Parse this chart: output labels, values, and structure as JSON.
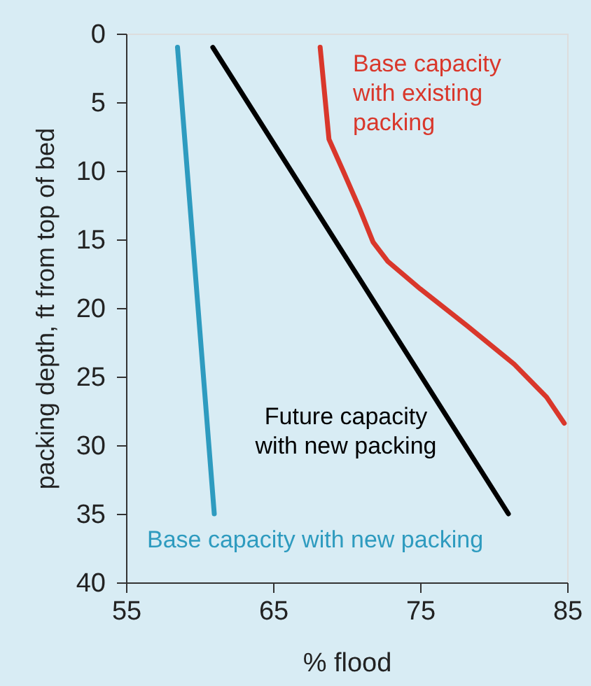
{
  "chart_data": {
    "type": "line",
    "xlabel": "% flood",
    "ylabel": "packing depth, ft from top of bed",
    "xlim": [
      55,
      85
    ],
    "xticks": [
      55,
      65,
      75,
      85
    ],
    "ylim": [
      40,
      0
    ],
    "yticks": [
      0,
      5,
      10,
      15,
      20,
      25,
      30,
      35,
      40
    ],
    "grid": false,
    "legend": false,
    "line_style": "solid",
    "marker": "none",
    "series": [
      {
        "name": "Base capacity with new packing",
        "color": "#2e9bbf",
        "x": [
          58.5,
          61.0
        ],
        "values": [
          1,
          35
        ]
      },
      {
        "name": "Future capacity\nwith new packing",
        "color": "#000000",
        "x": [
          60.9,
          81.0
        ],
        "values": [
          1,
          35
        ]
      },
      {
        "name": "Base capacity\nwith existing\npacking",
        "color": "#d9372b",
        "x": [
          68.2,
          68.8,
          69.8,
          70.9,
          71.8,
          72.8,
          75.0,
          78.2,
          81.4,
          83.6,
          84.8
        ],
        "values": [
          1,
          7.7,
          10.1,
          12.8,
          15.2,
          16.6,
          18.6,
          21.3,
          24.1,
          26.5,
          28.4
        ]
      }
    ]
  }
}
